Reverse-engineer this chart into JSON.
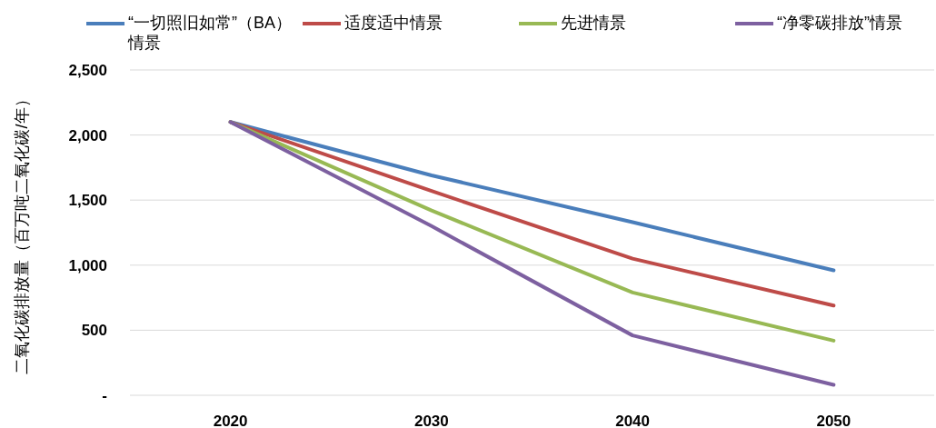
{
  "chart_data": {
    "type": "line",
    "ylabel": "二氧化碳排放量（百万吨二氧化碳/年）",
    "categories": [
      "2020",
      "2030",
      "2040",
      "2050"
    ],
    "series": [
      {
        "name": "“一切照旧如常”（BA）情景",
        "color": "#4a7ebb",
        "values": [
          2100,
          1690,
          1330,
          960
        ]
      },
      {
        "name": "适度适中情景",
        "color": "#be4b48",
        "values": [
          2100,
          1570,
          1050,
          690
        ]
      },
      {
        "name": "先进情景",
        "color": "#98b954",
        "values": [
          2100,
          1420,
          790,
          420
        ]
      },
      {
        "name": "“净零碳排放”情景",
        "color": "#7d60a0",
        "values": [
          2100,
          1300,
          460,
          80
        ]
      }
    ],
    "ylim": [
      0,
      2500
    ],
    "yticks": [
      {
        "value": 0,
        "label": "-"
      },
      {
        "value": 500,
        "label": "500"
      },
      {
        "value": 1000,
        "label": "1,000"
      },
      {
        "value": 1500,
        "label": "1,500"
      },
      {
        "value": 2000,
        "label": "2,000"
      },
      {
        "value": 2500,
        "label": "2,500"
      }
    ],
    "grid": "y",
    "legend": "top"
  }
}
